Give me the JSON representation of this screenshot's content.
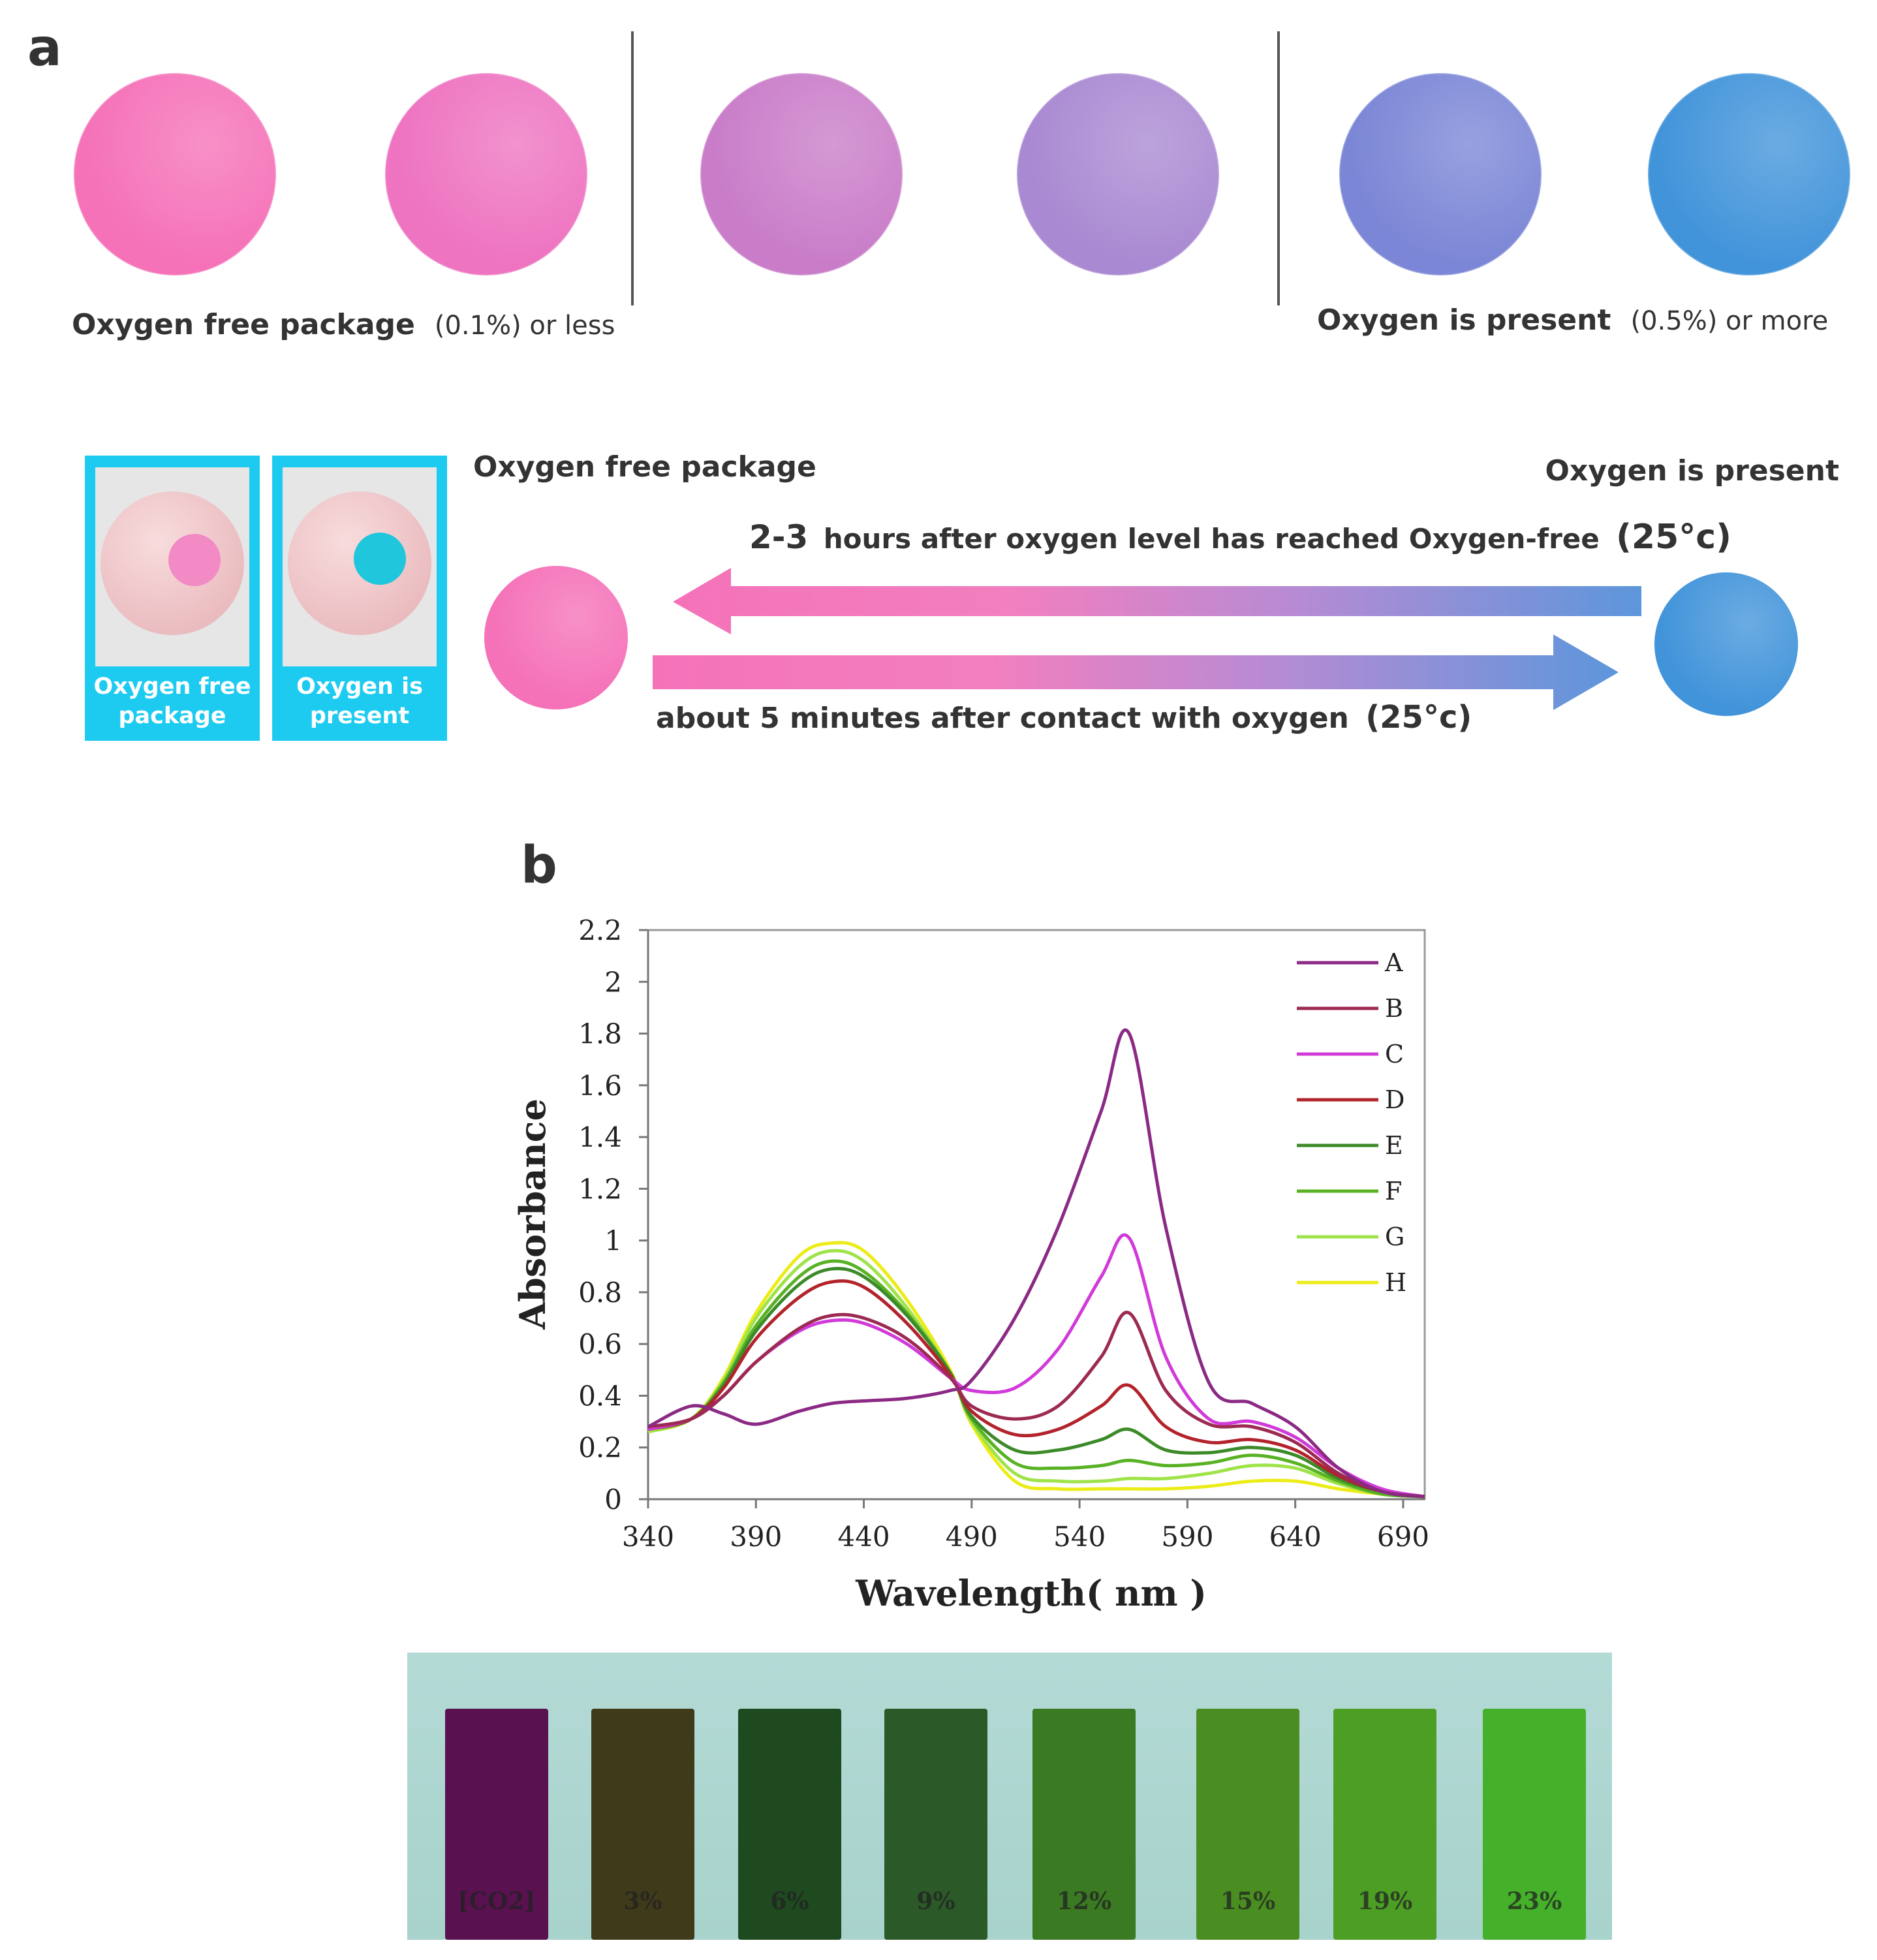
{
  "panel_a": {
    "label": "a",
    "circle_colors": [
      "#f571b8",
      "#ee73c0",
      "#c97cc8",
      "#a989d2",
      "#7b86d6",
      "#4294da"
    ],
    "left_caption": "Oxygen free package",
    "left_caption_note": "(0.1%) or less",
    "right_caption": "Oxygen is present",
    "right_caption_note": "(0.5%) or more",
    "photo_labels": [
      [
        "Oxygen free",
        "package"
      ],
      [
        "Oxygen is",
        "present"
      ]
    ],
    "photo_dot_colors": [
      "#f28ac5",
      "#1fc6dc"
    ],
    "transition_left_label": "Oxygen free package",
    "transition_right_label": "Oxygen is present",
    "arrow_top_prefix": "2-3",
    "arrow_top_text": "hours after oxygen level has reached Oxygen-free",
    "arrow_top_temp": "(25°c)",
    "arrow_bottom_text": "about 5 minutes after contact with oxygen",
    "arrow_bottom_temp": "(25°c)",
    "state_colors": {
      "oxygen_free": "#f571b8",
      "oxygen_present": "#4294da"
    }
  },
  "panel_b": {
    "label": "b",
    "strip_labels": [
      "[CO2]",
      "3%",
      "6%",
      "9%",
      "12%",
      "15%",
      "19%",
      "23%"
    ],
    "strip_colors": [
      "#5a1150",
      "#3f3a1a",
      "#1f4a20",
      "#2b5a28",
      "#3a7a22",
      "#4a8e22",
      "#4c9e24",
      "#45b02a"
    ]
  },
  "chart_data": {
    "type": "line",
    "title": "",
    "xlabel": "Wavelength( nm )",
    "ylabel": "Absorbance",
    "xlim": [
      340,
      700
    ],
    "ylim": [
      0,
      2.2
    ],
    "x_ticks": [
      340,
      390,
      440,
      490,
      540,
      590,
      640,
      690
    ],
    "y_ticks": [
      0,
      0.2,
      0.4,
      0.6,
      0.8,
      1,
      1.2,
      1.4,
      1.6,
      1.8,
      2,
      2.2
    ],
    "x_tick_labels": [
      "340",
      "390",
      "440",
      "490",
      "540",
      "590",
      "640",
      "690"
    ],
    "y_tick_labels": [
      "0",
      "0.2",
      "0.4",
      "0.6",
      "0.8",
      "1",
      "1.2",
      "1.4",
      "1.6",
      "1.8",
      "2",
      "2.2"
    ],
    "legend_position": "top-right",
    "x": [
      340,
      360,
      375,
      390,
      410,
      425,
      440,
      460,
      480,
      490,
      510,
      530,
      550,
      563,
      580,
      600,
      620,
      640,
      660,
      680,
      700
    ],
    "series": [
      {
        "name": "A",
        "color": "#8b2a84",
        "values": [
          0.28,
          0.36,
          0.33,
          0.29,
          0.34,
          0.37,
          0.38,
          0.39,
          0.42,
          0.46,
          0.7,
          1.05,
          1.5,
          1.8,
          1.05,
          0.45,
          0.37,
          0.28,
          0.12,
          0.03,
          0.01
        ]
      },
      {
        "name": "B",
        "color": "#9c2a52",
        "values": [
          0.28,
          0.31,
          0.4,
          0.53,
          0.66,
          0.71,
          0.7,
          0.62,
          0.47,
          0.36,
          0.31,
          0.36,
          0.55,
          0.72,
          0.42,
          0.29,
          0.28,
          0.22,
          0.1,
          0.03,
          0.01
        ]
      },
      {
        "name": "C",
        "color": "#d13ad9",
        "values": [
          0.27,
          0.31,
          0.4,
          0.53,
          0.65,
          0.69,
          0.68,
          0.6,
          0.47,
          0.42,
          0.43,
          0.58,
          0.86,
          1.01,
          0.55,
          0.31,
          0.3,
          0.24,
          0.12,
          0.04,
          0.01
        ]
      },
      {
        "name": "D",
        "color": "#b3232c",
        "values": [
          0.27,
          0.31,
          0.43,
          0.62,
          0.78,
          0.84,
          0.82,
          0.68,
          0.48,
          0.34,
          0.25,
          0.27,
          0.36,
          0.44,
          0.28,
          0.22,
          0.23,
          0.19,
          0.09,
          0.03,
          0.01
        ]
      },
      {
        "name": "E",
        "color": "#3c8a28",
        "values": [
          0.27,
          0.31,
          0.44,
          0.65,
          0.83,
          0.89,
          0.86,
          0.71,
          0.49,
          0.32,
          0.19,
          0.19,
          0.23,
          0.27,
          0.19,
          0.18,
          0.2,
          0.17,
          0.08,
          0.03,
          0.01
        ]
      },
      {
        "name": "F",
        "color": "#59b224",
        "values": [
          0.27,
          0.31,
          0.45,
          0.67,
          0.86,
          0.92,
          0.88,
          0.72,
          0.49,
          0.31,
          0.14,
          0.12,
          0.13,
          0.15,
          0.13,
          0.14,
          0.17,
          0.14,
          0.07,
          0.02,
          0.01
        ]
      },
      {
        "name": "G",
        "color": "#9fe34a",
        "values": [
          0.26,
          0.31,
          0.46,
          0.7,
          0.9,
          0.96,
          0.92,
          0.74,
          0.49,
          0.3,
          0.1,
          0.07,
          0.07,
          0.08,
          0.08,
          0.1,
          0.13,
          0.12,
          0.06,
          0.02,
          0.01
        ]
      },
      {
        "name": "H",
        "color": "#ecec17",
        "values": [
          0.26,
          0.31,
          0.47,
          0.72,
          0.94,
          0.99,
          0.96,
          0.77,
          0.5,
          0.29,
          0.07,
          0.04,
          0.04,
          0.04,
          0.04,
          0.05,
          0.07,
          0.07,
          0.04,
          0.02,
          0.01
        ]
      }
    ]
  }
}
